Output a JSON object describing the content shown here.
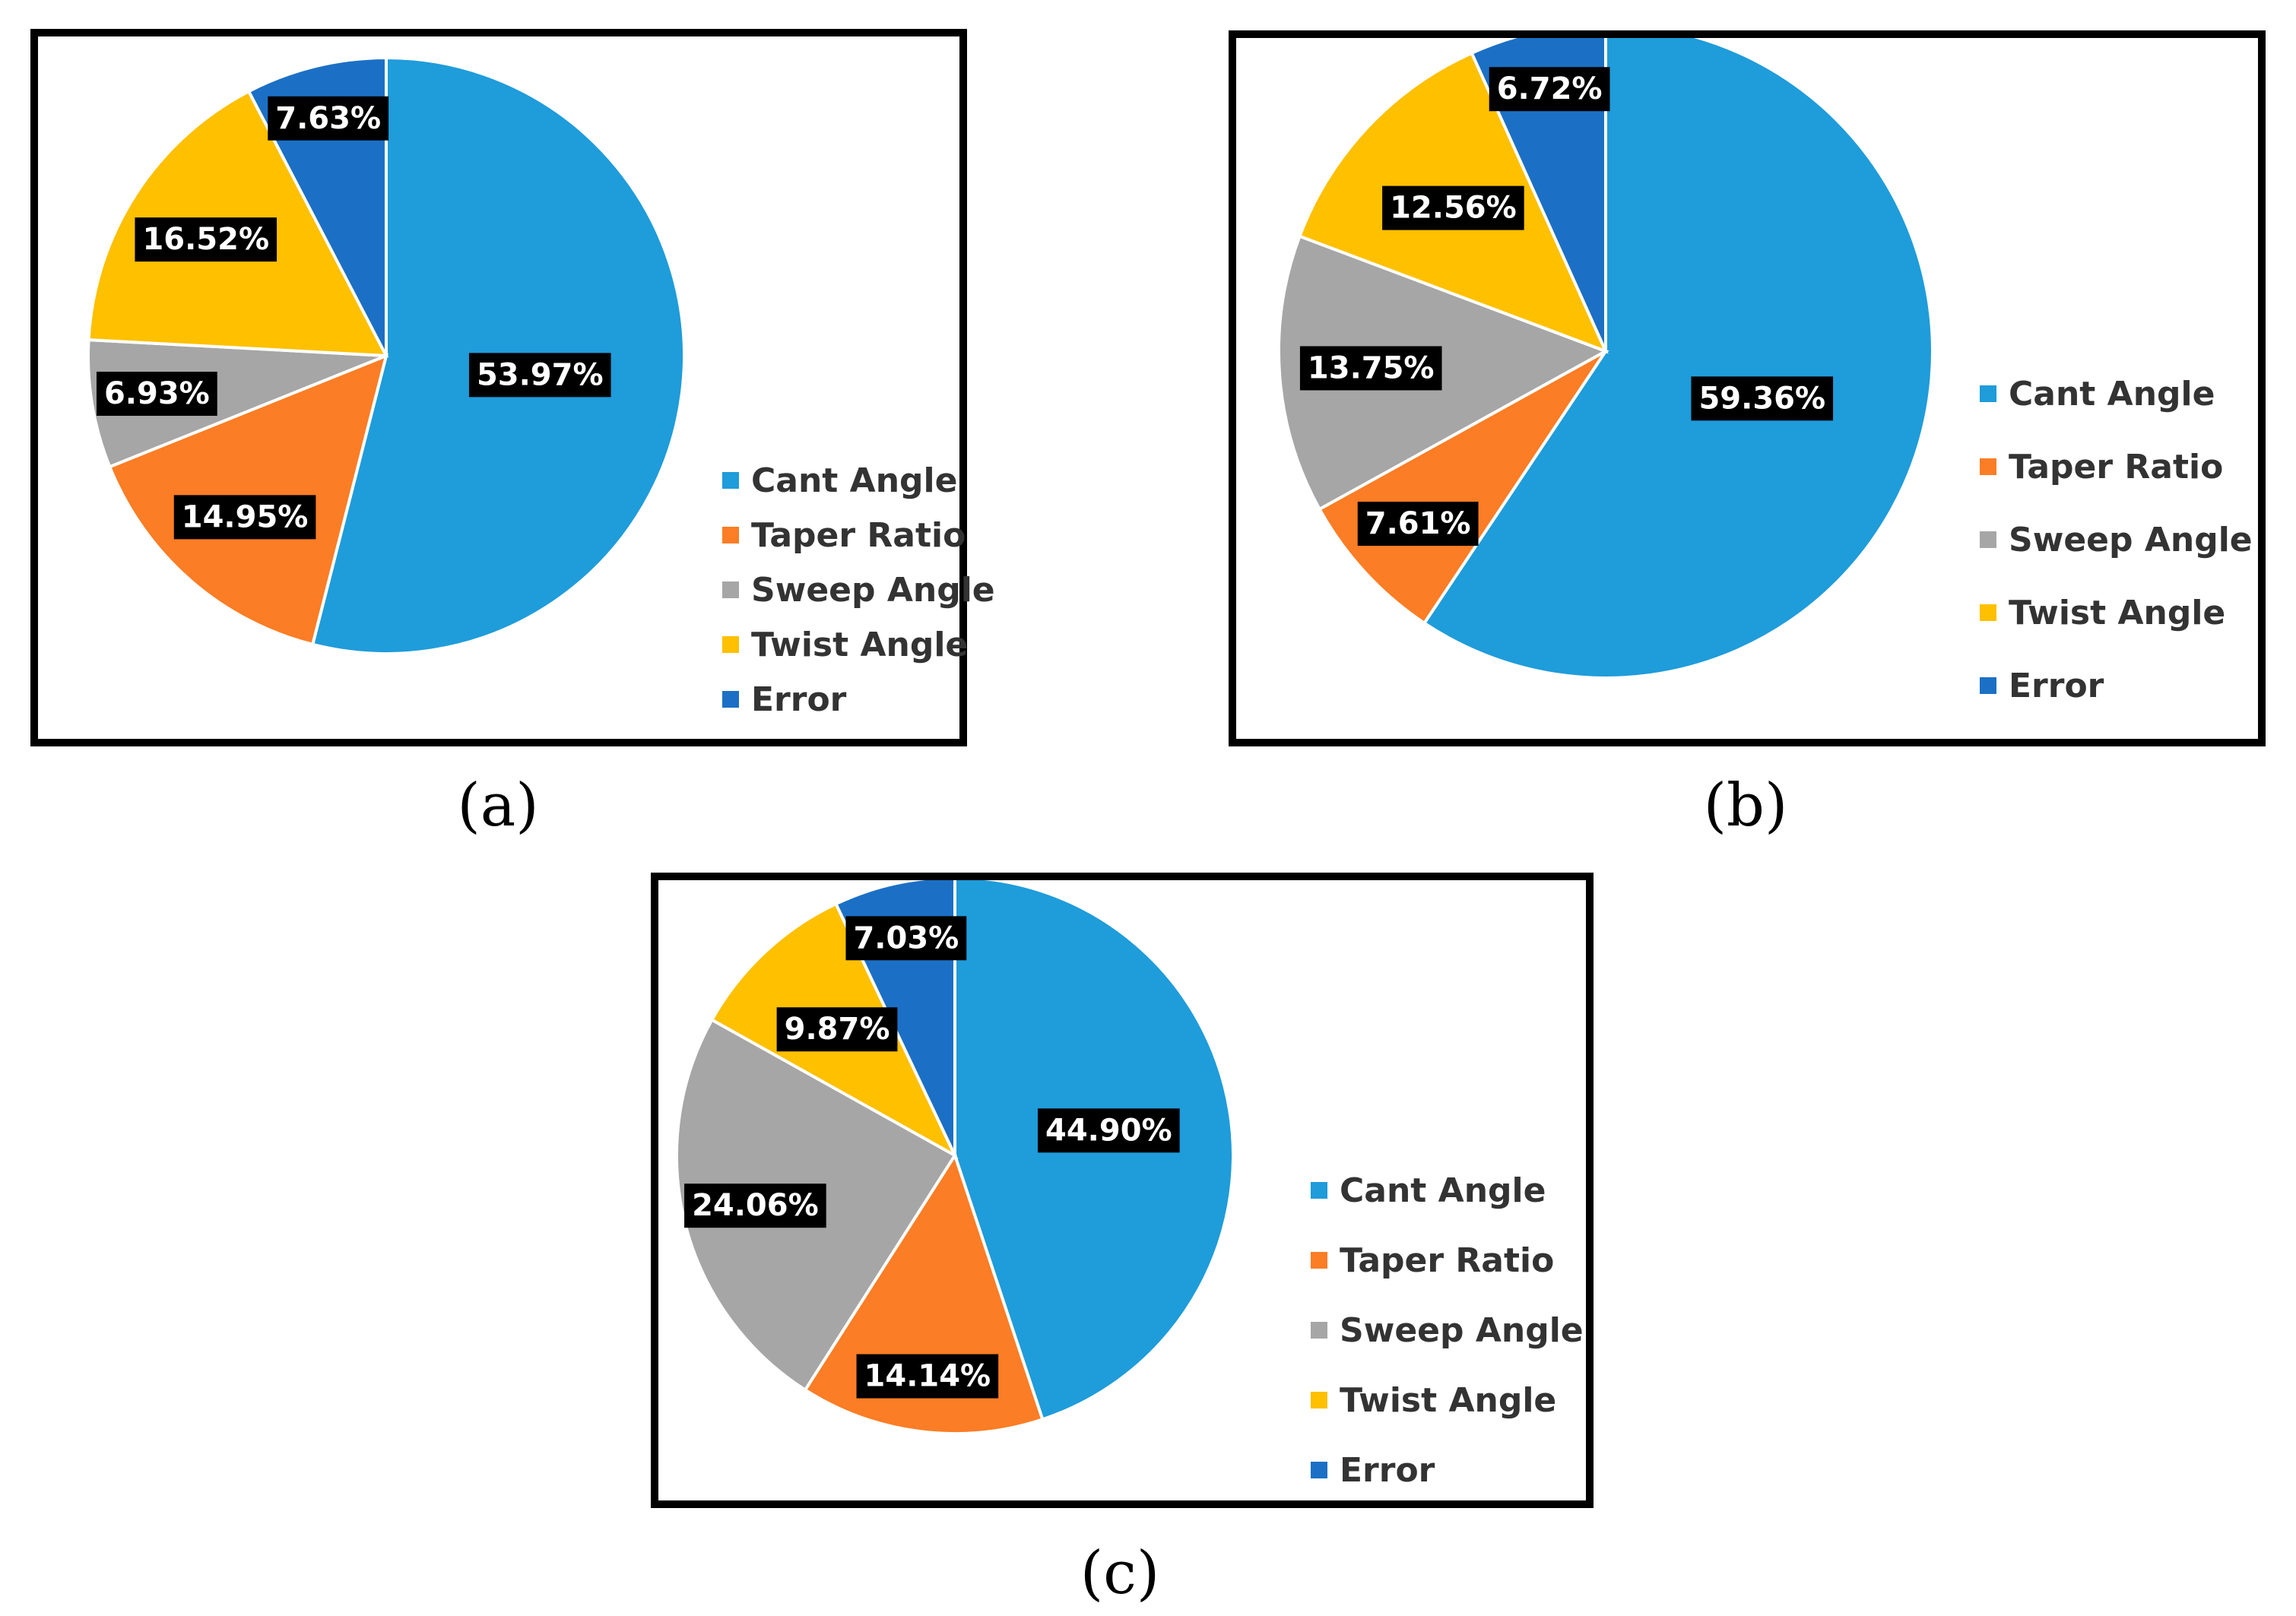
{
  "chart_data": [
    {
      "id": "a",
      "type": "pie",
      "caption": "(a)",
      "categories": [
        "Cant Angle",
        "Taper Ratio",
        "Sweep Angle",
        "Twist Angle",
        "Error"
      ],
      "values": [
        53.97,
        14.95,
        6.93,
        16.52,
        7.63
      ],
      "data_labels": [
        "53.97%",
        "14.95%",
        "6.93%",
        "16.52%",
        "7.63%"
      ],
      "colors": [
        "#1f9cda",
        "#fb7d25",
        "#a6a6a6",
        "#ffc000",
        "#1b70c5"
      ],
      "legend_position": "right"
    },
    {
      "id": "b",
      "type": "pie",
      "caption": "(b)",
      "categories": [
        "Cant Angle",
        "Taper Ratio",
        "Sweep Angle",
        "Twist Angle",
        "Error"
      ],
      "values": [
        59.36,
        7.61,
        13.75,
        12.56,
        6.72
      ],
      "data_labels": [
        "59.36%",
        "7.61%",
        "13.75%",
        "12.56%",
        "6.72%"
      ],
      "colors": [
        "#1f9cda",
        "#fb7d25",
        "#a6a6a6",
        "#ffc000",
        "#1b70c5"
      ],
      "legend_position": "right"
    },
    {
      "id": "c",
      "type": "pie",
      "caption": "(c)",
      "categories": [
        "Cant Angle",
        "Taper Ratio",
        "Sweep Angle",
        "Twist Angle",
        "Error"
      ],
      "values": [
        44.9,
        14.14,
        24.06,
        9.87,
        7.03
      ],
      "data_labels": [
        "44.90%",
        "14.14%",
        "24.06%",
        "9.87%",
        "7.03%"
      ],
      "colors": [
        "#1f9cda",
        "#fb7d25",
        "#a6a6a6",
        "#ffc000",
        "#1b70c5"
      ],
      "legend_position": "right"
    }
  ]
}
